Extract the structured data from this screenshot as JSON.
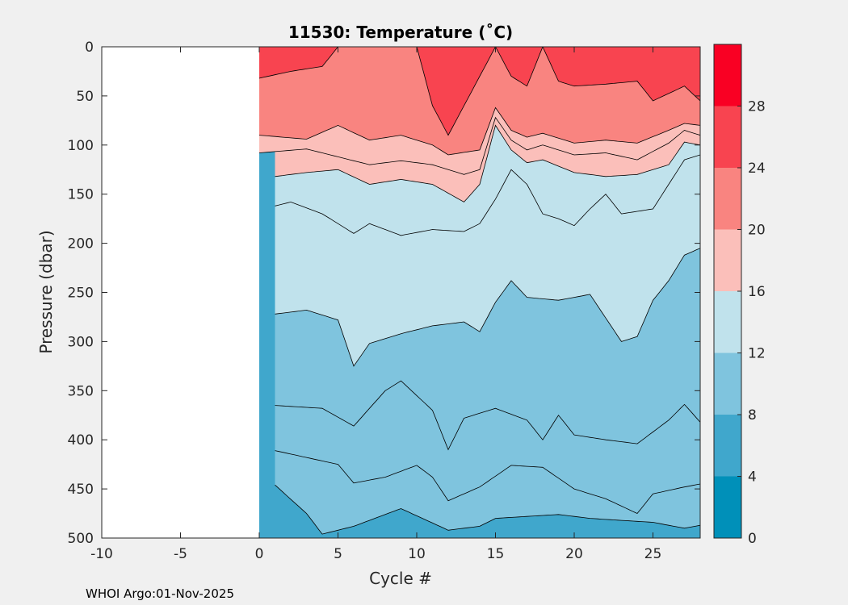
{
  "chart_data": {
    "type": "contour",
    "title": "11530:  Temperature (˚C)",
    "xlabel": "Cycle #",
    "ylabel": "Pressure (dbar)",
    "xlim": [
      -10,
      28
    ],
    "ylim": [
      0,
      500
    ],
    "y_reversed": true,
    "x_ticks": [
      -10,
      -5,
      0,
      5,
      10,
      15,
      20,
      25
    ],
    "x_tick_labels": [
      "-10",
      "-5",
      "0",
      "5",
      "10",
      "15",
      "20",
      "25"
    ],
    "y_ticks": [
      0,
      50,
      100,
      150,
      200,
      250,
      300,
      350,
      400,
      450,
      500
    ],
    "y_tick_labels": [
      "0",
      "50",
      "100",
      "150",
      "200",
      "250",
      "300",
      "350",
      "400",
      "450",
      "500"
    ],
    "colorbar": {
      "levels": [
        0,
        4,
        8,
        12,
        16,
        20,
        24,
        28,
        32
      ],
      "tick_values": [
        0,
        4,
        8,
        12,
        16,
        20,
        24,
        28
      ],
      "tick_labels": [
        "0",
        "4",
        "8",
        "12",
        "16",
        "20",
        "24",
        "28"
      ],
      "colors": [
        "#0090b9",
        "#40a7cc",
        "#7fc4de",
        "#c0e2ec",
        "#fbbfba",
        "#f98480",
        "#f84450",
        "#f90023"
      ]
    },
    "data_x_range": [
      0,
      28
    ],
    "contours": [
      {
        "level": 8,
        "pressure_at_cycle": [
          [
            1,
            446
          ],
          [
            3,
            475
          ],
          [
            4,
            496
          ],
          [
            6,
            488
          ],
          [
            9,
            470
          ],
          [
            12,
            492
          ],
          [
            14,
            488
          ],
          [
            15,
            480
          ],
          [
            17,
            478
          ],
          [
            19,
            476
          ],
          [
            21,
            480
          ],
          [
            23,
            482
          ],
          [
            25,
            484
          ],
          [
            27,
            490
          ],
          [
            28,
            487
          ]
        ]
      },
      {
        "level": 10,
        "pressure_at_cycle": [
          [
            1,
            411
          ],
          [
            3,
            418
          ],
          [
            5,
            425
          ],
          [
            6,
            444
          ],
          [
            8,
            438
          ],
          [
            10,
            426
          ],
          [
            11,
            438
          ],
          [
            12,
            462
          ],
          [
            14,
            448
          ],
          [
            16,
            426
          ],
          [
            18,
            428
          ],
          [
            20,
            450
          ],
          [
            22,
            460
          ],
          [
            24,
            475
          ],
          [
            25,
            455
          ],
          [
            27,
            448
          ],
          [
            28,
            445
          ]
        ]
      },
      {
        "level": 11,
        "pressure_at_cycle": [
          [
            1,
            365
          ],
          [
            4,
            368
          ],
          [
            6,
            386
          ],
          [
            8,
            350
          ],
          [
            9,
            340
          ],
          [
            11,
            370
          ],
          [
            12,
            410
          ],
          [
            13,
            378
          ],
          [
            15,
            368
          ],
          [
            17,
            380
          ],
          [
            18,
            400
          ],
          [
            19,
            375
          ],
          [
            20,
            395
          ],
          [
            22,
            400
          ],
          [
            24,
            404
          ],
          [
            26,
            380
          ],
          [
            27,
            364
          ],
          [
            28,
            382
          ]
        ]
      },
      {
        "level": 12,
        "pressure_at_cycle": [
          [
            1,
            272
          ],
          [
            3,
            268
          ],
          [
            5,
            278
          ],
          [
            6,
            325
          ],
          [
            7,
            302
          ],
          [
            9,
            292
          ],
          [
            11,
            284
          ],
          [
            13,
            280
          ],
          [
            14,
            290
          ],
          [
            15,
            260
          ],
          [
            16,
            238
          ],
          [
            17,
            255
          ],
          [
            19,
            258
          ],
          [
            21,
            252
          ],
          [
            23,
            300
          ],
          [
            24,
            295
          ],
          [
            25,
            258
          ],
          [
            26,
            238
          ],
          [
            27,
            212
          ],
          [
            28,
            205
          ]
        ]
      },
      {
        "level": 14,
        "pressure_at_cycle": [
          [
            1,
            162
          ],
          [
            2,
            158
          ],
          [
            4,
            170
          ],
          [
            6,
            190
          ],
          [
            7,
            180
          ],
          [
            9,
            192
          ],
          [
            11,
            186
          ],
          [
            13,
            188
          ],
          [
            14,
            180
          ],
          [
            15,
            155
          ],
          [
            16,
            125
          ],
          [
            17,
            140
          ],
          [
            18,
            170
          ],
          [
            19,
            175
          ],
          [
            20,
            182
          ],
          [
            21,
            165
          ],
          [
            22,
            150
          ],
          [
            23,
            170
          ],
          [
            25,
            165
          ],
          [
            26,
            140
          ],
          [
            27,
            115
          ],
          [
            28,
            110
          ]
        ]
      },
      {
        "level": 16,
        "pressure_at_cycle": [
          [
            1,
            132
          ],
          [
            3,
            128
          ],
          [
            5,
            125
          ],
          [
            7,
            140
          ],
          [
            9,
            135
          ],
          [
            11,
            140
          ],
          [
            13,
            158
          ],
          [
            14,
            140
          ],
          [
            15,
            80
          ],
          [
            16,
            105
          ],
          [
            17,
            118
          ],
          [
            18,
            115
          ],
          [
            20,
            128
          ],
          [
            22,
            132
          ],
          [
            24,
            130
          ],
          [
            26,
            120
          ],
          [
            27,
            97
          ],
          [
            28,
            100
          ]
        ]
      },
      {
        "level": 18,
        "pressure_at_cycle": [
          [
            0,
            108
          ],
          [
            3,
            104
          ],
          [
            5,
            112
          ],
          [
            7,
            120
          ],
          [
            9,
            116
          ],
          [
            11,
            120
          ],
          [
            13,
            130
          ],
          [
            14,
            125
          ],
          [
            15,
            72
          ],
          [
            16,
            95
          ],
          [
            17,
            105
          ],
          [
            18,
            100
          ],
          [
            20,
            110
          ],
          [
            22,
            108
          ],
          [
            24,
            115
          ],
          [
            26,
            98
          ],
          [
            27,
            85
          ],
          [
            28,
            90
          ]
        ]
      },
      {
        "level": 20,
        "pressure_at_cycle": [
          [
            0,
            90
          ],
          [
            3,
            94
          ],
          [
            5,
            80
          ],
          [
            7,
            95
          ],
          [
            9,
            90
          ],
          [
            11,
            100
          ],
          [
            12,
            110
          ],
          [
            14,
            105
          ],
          [
            15,
            62
          ],
          [
            16,
            85
          ],
          [
            17,
            92
          ],
          [
            18,
            88
          ],
          [
            20,
            98
          ],
          [
            22,
            95
          ],
          [
            24,
            98
          ],
          [
            26,
            85
          ],
          [
            27,
            78
          ],
          [
            28,
            80
          ]
        ]
      },
      {
        "level": 24,
        "pressure_at_cycle": [
          [
            0,
            32
          ],
          [
            2,
            25
          ],
          [
            4,
            20
          ],
          [
            5,
            0
          ],
          [
            10,
            0
          ],
          [
            11,
            60
          ],
          [
            12,
            90
          ],
          [
            13,
            60
          ],
          [
            14,
            30
          ],
          [
            15,
            0
          ],
          [
            16,
            30
          ],
          [
            17,
            40
          ],
          [
            18,
            0
          ],
          [
            19,
            35
          ],
          [
            20,
            40
          ],
          [
            22,
            38
          ],
          [
            24,
            35
          ],
          [
            25,
            55
          ],
          [
            27,
            40
          ],
          [
            28,
            55
          ]
        ]
      }
    ],
    "annotation": "WHOI Argo:01-Nov-2025"
  }
}
